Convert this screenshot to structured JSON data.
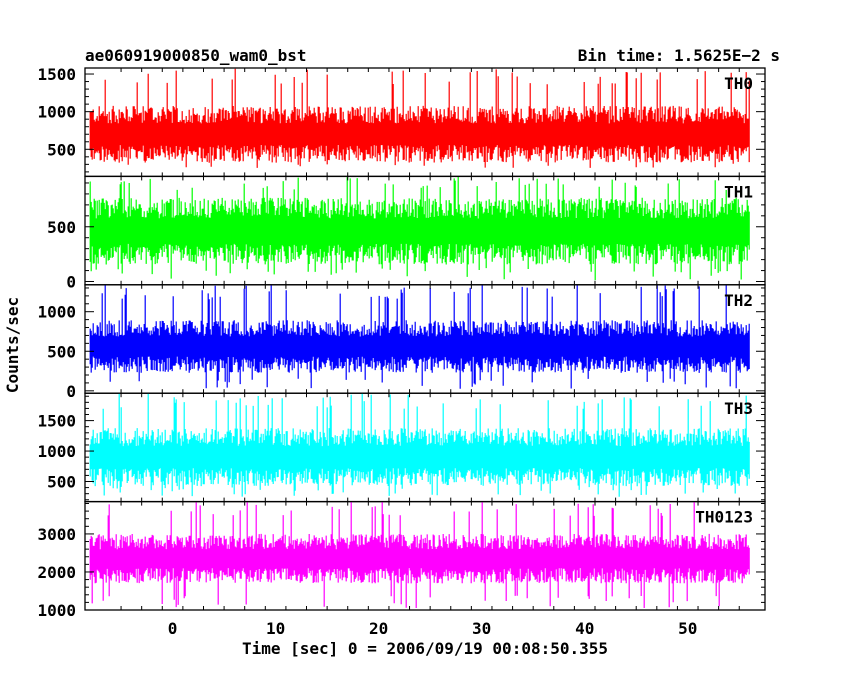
{
  "header": {
    "title": "ae060919000850_wam0_bst",
    "bin_time": "Bin time: 1.5625E−2 s"
  },
  "chart_data": {
    "type": "line",
    "title": "ae060919000850_wam0_bst",
    "xlabel": "Time [sec] 0 = 2006/09/19 00:08:50.355",
    "ylabel": "Counts/sec",
    "xlim": [
      -8.5,
      57.5
    ],
    "x_range": [
      -8.0,
      56.0
    ],
    "x_ticks": [
      0,
      10,
      20,
      30,
      40,
      50
    ],
    "bin_time_s": 0.015625,
    "panels": [
      {
        "name": "TH0",
        "color": "#ff0000",
        "ylim": [
          140,
          1580
        ],
        "y_ticks": [
          500,
          1000,
          1500
        ],
        "base": 700,
        "spread": 260,
        "upper_max": 1580,
        "lower_min": 250
      },
      {
        "name": "TH1",
        "color": "#00ff00",
        "ylim": [
          -30,
          960
        ],
        "y_ticks": [
          0,
          500
        ],
        "base": 460,
        "spread": 210,
        "upper_max": 960,
        "lower_min": 10
      },
      {
        "name": "TH2",
        "color": "#0000ff",
        "ylim": [
          -30,
          1340
        ],
        "y_ticks": [
          0,
          500,
          1000
        ],
        "base": 560,
        "spread": 230,
        "upper_max": 1340,
        "lower_min": 20
      },
      {
        "name": "TH3",
        "color": "#00ffff",
        "ylim": [
          170,
          1950
        ],
        "y_ticks": [
          500,
          1000,
          1500
        ],
        "base": 900,
        "spread": 330,
        "upper_max": 1950,
        "lower_min": 250
      },
      {
        "name": "TH0123",
        "color": "#ff00ff",
        "ylim": [
          1000,
          3850
        ],
        "y_ticks": [
          1000,
          2000,
          3000
        ],
        "base": 2350,
        "spread": 450,
        "upper_max": 3850,
        "lower_min": 1050
      }
    ]
  }
}
